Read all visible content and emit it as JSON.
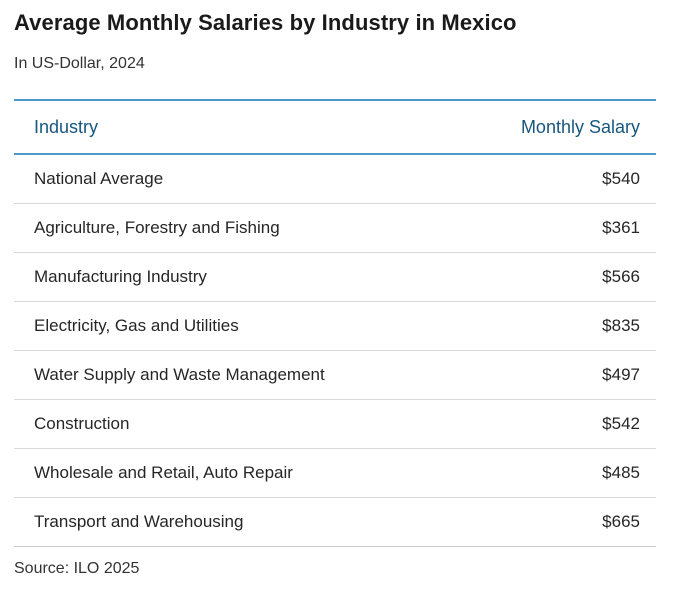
{
  "header": {
    "title": "Average Monthly Salaries by Industry in Mexico",
    "subtitle": "In US-Dollar, 2024"
  },
  "table": {
    "columns": [
      {
        "label": "Industry"
      },
      {
        "label": "Monthly Salary"
      }
    ],
    "rows": [
      {
        "industry": "National Average",
        "salary": "$540"
      },
      {
        "industry": "Agriculture, Forestry and Fishing",
        "salary": "$361"
      },
      {
        "industry": "Manufacturing Industry",
        "salary": "$566"
      },
      {
        "industry": "Electricity, Gas and Utilities",
        "salary": "$835"
      },
      {
        "industry": "Water Supply and Waste Management",
        "salary": "$497"
      },
      {
        "industry": "Construction",
        "salary": "$542"
      },
      {
        "industry": "Wholesale and Retail, Auto Repair",
        "salary": "$485"
      },
      {
        "industry": "Transport and Warehousing",
        "salary": "$665"
      }
    ]
  },
  "footer": {
    "source": "Source: ILO 2025"
  },
  "colors": {
    "accent_rule_blue": "#4a97c9",
    "column_header_blue": "#17567f",
    "row_separator_gray": "#d9d9d9",
    "footer_rule_gray": "#c9c9c9",
    "title_text": "#1a1a1a",
    "body_text": "#262626"
  },
  "chart_data": {
    "type": "table",
    "title": "Average Monthly Salaries by Industry in Mexico",
    "subtitle": "In US-Dollar, 2024",
    "columns": [
      "Industry",
      "Monthly Salary"
    ],
    "categories": [
      "National Average",
      "Agriculture, Forestry and Fishing",
      "Manufacturing Industry",
      "Electricity, Gas and Utilities",
      "Water Supply and Waste Management",
      "Construction",
      "Wholesale and Retail, Auto Repair",
      "Transport and Warehousing"
    ],
    "values": [
      540,
      361,
      566,
      835,
      497,
      542,
      485,
      665
    ],
    "unit": "USD per month",
    "source": "Source: ILO 2025",
    "layout_hints": {
      "grid": "horizontal row separators only",
      "value_alignment": "right",
      "header_rules": "blue top and bottom"
    }
  }
}
